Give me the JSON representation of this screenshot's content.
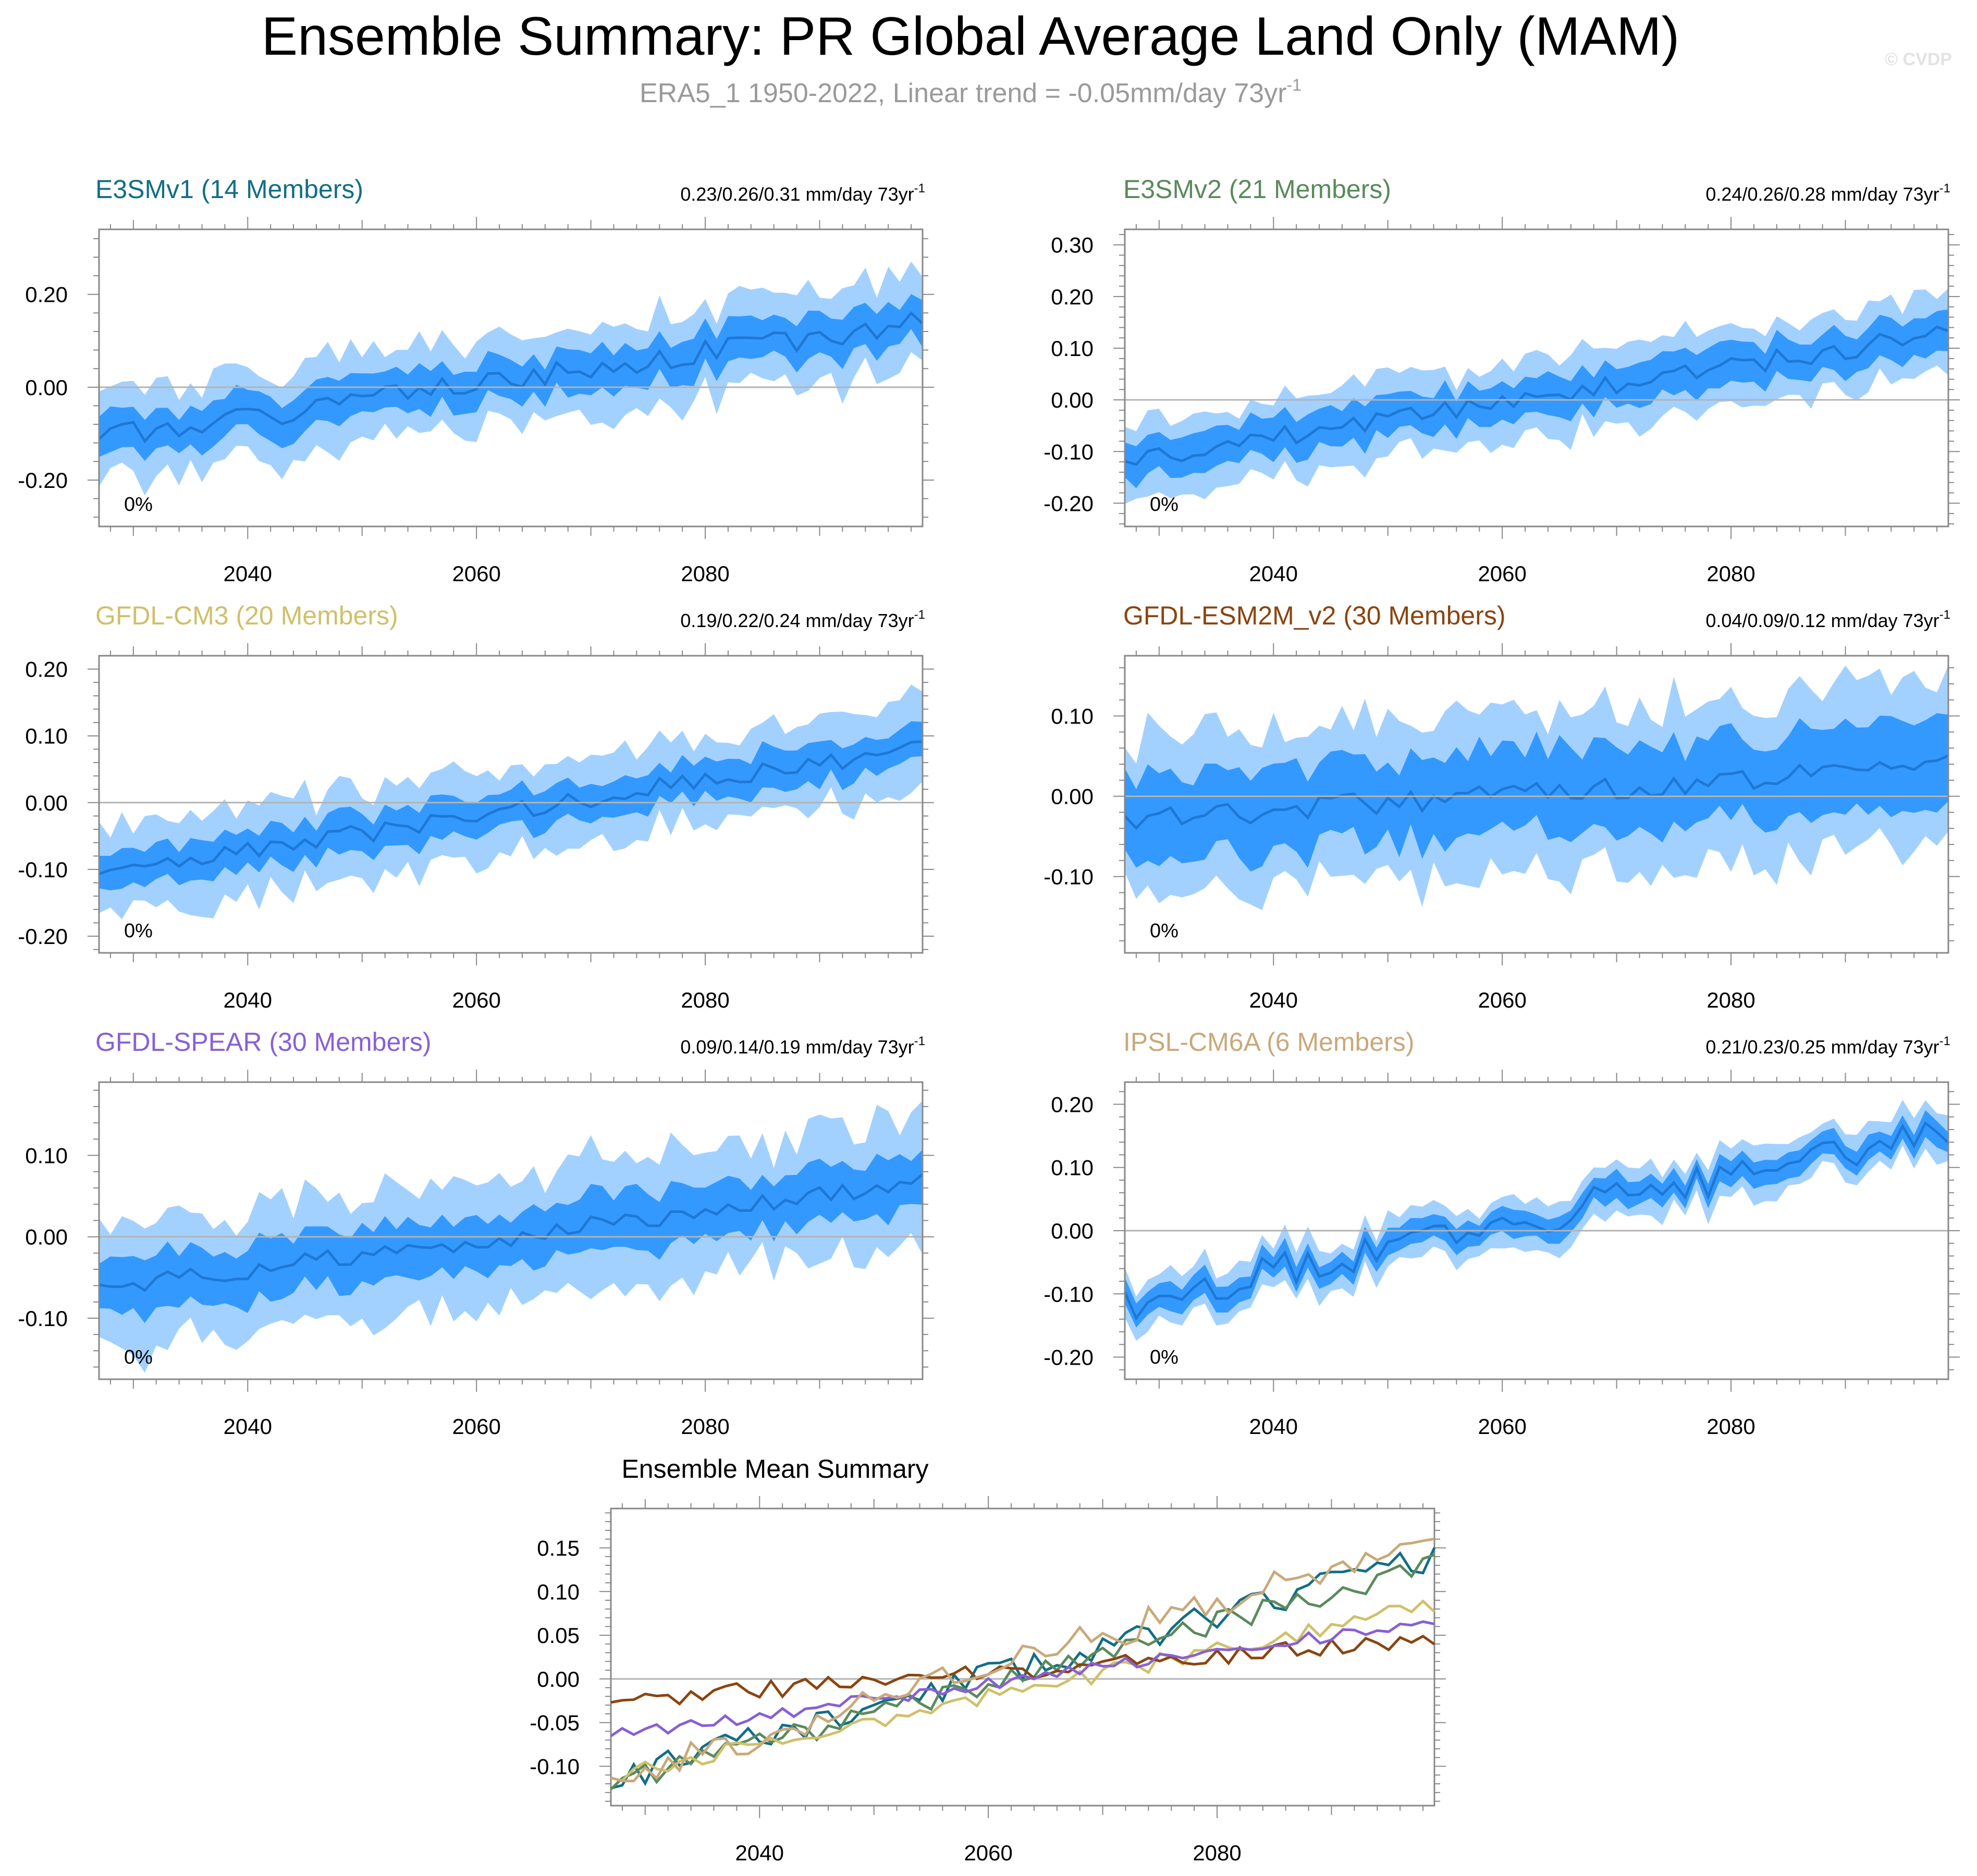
{
  "title": "Ensemble Summary: PR Global Average Land Only (MAM)",
  "subtitle": "ERA5_1 1950-2022, Linear trend = -0.05mm/day 73yr",
  "subtitle_sup": "-1",
  "watermark": "© CVDP",
  "unit_suffix": " mm/day 73yr",
  "unit_sup": "-1",
  "colors": {
    "band_outer": "#a3d1ff",
    "band_inner": "#3399ff",
    "median_line": "#1e78d4",
    "zero_line": "#b3b3b3",
    "axis": "#888888"
  },
  "chart_data": [
    {
      "type": "area",
      "title": "E3SMv1 (14 Members)",
      "title_color": "#126e86",
      "trend_range": "0.23/0.26/0.31",
      "x_start": 2027,
      "x_end": 2099,
      "xticks": [
        2040,
        2060,
        2080
      ],
      "ylim": [
        -0.3,
        0.34
      ],
      "yticks": [
        -0.2,
        0.0,
        0.2
      ],
      "ytick_labels": [
        "-0.20",
        "0.00",
        "0.20"
      ],
      "median_start": -0.11,
      "median_end": 0.14,
      "inner_half": 0.045,
      "outer_half": 0.1,
      "noise": 0.025,
      "seed": 1,
      "pct_label": "0%"
    },
    {
      "type": "area",
      "title": "E3SMv2 (21 Members)",
      "title_color": "#5a8a5c",
      "trend_range": "0.24/0.26/0.28",
      "x_start": 2027,
      "x_end": 2099,
      "xticks": [
        2040,
        2060,
        2080
      ],
      "ylim": [
        -0.245,
        0.33
      ],
      "yticks": [
        -0.2,
        -0.1,
        0.0,
        0.1,
        0.2,
        0.3
      ],
      "ytick_labels": [
        "-0.20",
        "-0.10",
        "0.00",
        "0.10",
        "0.20",
        "0.30"
      ],
      "median_start": -0.12,
      "median_end": 0.13,
      "inner_half": 0.04,
      "outer_half": 0.08,
      "noise": 0.02,
      "seed": 2,
      "pct_label": "0%"
    },
    {
      "type": "area",
      "title": "GFDL-CM3 (20 Members)",
      "title_color": "#cfc06a",
      "trend_range": "0.19/0.22/0.24",
      "x_start": 2027,
      "x_end": 2099,
      "xticks": [
        2040,
        2060,
        2080
      ],
      "ylim": [
        -0.225,
        0.22
      ],
      "yticks": [
        -0.2,
        -0.1,
        0.0,
        0.1,
        0.2
      ],
      "ytick_labels": [
        "-0.20",
        "-0.10",
        "0.00",
        "0.10",
        "0.20"
      ],
      "median_start": -0.11,
      "median_end": 0.085,
      "inner_half": 0.03,
      "outer_half": 0.07,
      "noise": 0.015,
      "seed": 3,
      "pct_label": "0%"
    },
    {
      "type": "area",
      "title": "GFDL-ESM2M_v2 (30 Members)",
      "title_color": "#8a4510",
      "trend_range": "0.04/0.09/0.12",
      "x_start": 2027,
      "x_end": 2099,
      "xticks": [
        2040,
        2060,
        2080
      ],
      "ylim": [
        -0.195,
        0.175
      ],
      "yticks": [
        -0.1,
        0.0,
        0.1
      ],
      "ytick_labels": [
        "-0.10",
        "0.00",
        "0.10"
      ],
      "median_start": -0.03,
      "median_end": 0.04,
      "inner_half": 0.055,
      "outer_half": 0.105,
      "noise": 0.015,
      "seed": 4,
      "pct_label": "0%"
    },
    {
      "type": "area",
      "title": "GFDL-SPEAR (30 Members)",
      "title_color": "#8760d6",
      "trend_range": "0.09/0.14/0.19",
      "x_start": 2027,
      "x_end": 2099,
      "xticks": [
        2040,
        2060,
        2080
      ],
      "ylim": [
        -0.175,
        0.19
      ],
      "yticks": [
        -0.1,
        0.0,
        0.1
      ],
      "ytick_labels": [
        "-0.10",
        "0.00",
        "0.10"
      ],
      "median_start": -0.065,
      "median_end": 0.065,
      "inner_half": 0.035,
      "outer_half": 0.08,
      "noise": 0.012,
      "seed": 5,
      "pct_label": "0%"
    },
    {
      "type": "area",
      "title": "IPSL-CM6A (6 Members)",
      "title_color": "#c9a97a",
      "trend_range": "0.21/0.23/0.25",
      "x_start": 2027,
      "x_end": 2099,
      "xticks": [
        2040,
        2060,
        2080
      ],
      "ylim": [
        -0.235,
        0.235
      ],
      "yticks": [
        -0.2,
        -0.1,
        0.0,
        0.1,
        0.2
      ],
      "ytick_labels": [
        "-0.20",
        "-0.10",
        "0.00",
        "0.10",
        "0.20"
      ],
      "median_start": -0.115,
      "median_end": 0.16,
      "inner_half": 0.02,
      "outer_half": 0.04,
      "noise": 0.028,
      "seed": 6,
      "pct_label": "0%"
    },
    {
      "type": "line",
      "title": "Ensemble Mean Summary",
      "x_start": 2027,
      "x_end": 2099,
      "xticks": [
        2040,
        2060,
        2080
      ],
      "ylim": [
        -0.145,
        0.195
      ],
      "yticks": [
        -0.1,
        -0.05,
        0.0,
        0.05,
        0.1,
        0.15
      ],
      "ytick_labels": [
        "-0.10",
        "-0.05",
        "0.00",
        "0.05",
        "0.10",
        "0.15"
      ],
      "series": [
        {
          "name": "E3SMv1",
          "color": "#126e86",
          "start": -0.115,
          "end": 0.14,
          "noise": 0.016,
          "seed": 11
        },
        {
          "name": "E3SMv2",
          "color": "#5a8a5c",
          "start": -0.12,
          "end": 0.13,
          "noise": 0.013,
          "seed": 12
        },
        {
          "name": "GFDL-CM3",
          "color": "#cfc06a",
          "start": -0.11,
          "end": 0.085,
          "noise": 0.01,
          "seed": 13
        },
        {
          "name": "GFDL-ESM2M_v2",
          "color": "#8a4510",
          "start": -0.025,
          "end": 0.045,
          "noise": 0.01,
          "seed": 14
        },
        {
          "name": "GFDL-SPEAR",
          "color": "#8760d6",
          "start": -0.065,
          "end": 0.065,
          "noise": 0.008,
          "seed": 15
        },
        {
          "name": "IPSL-CM6A",
          "color": "#c9a97a",
          "start": -0.115,
          "end": 0.16,
          "noise": 0.018,
          "seed": 16
        }
      ]
    }
  ]
}
